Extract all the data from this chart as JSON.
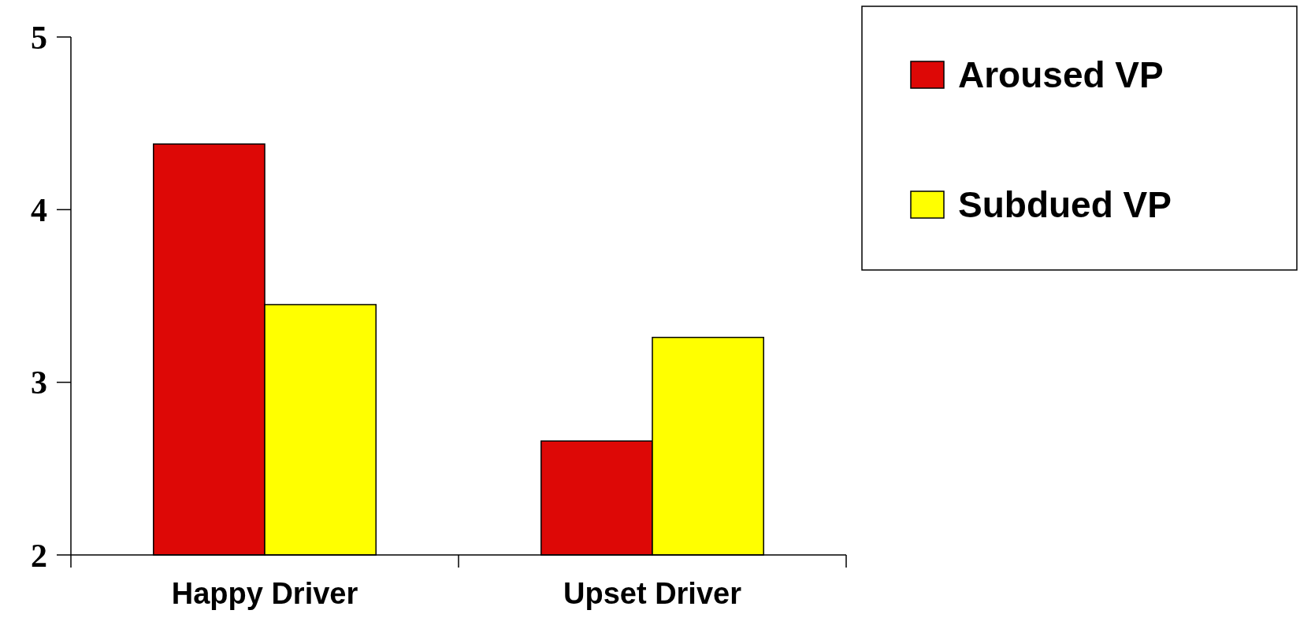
{
  "chart_data": {
    "type": "bar",
    "categories": [
      "Happy Driver",
      "Upset Driver"
    ],
    "series": [
      {
        "name": "Aroused VP",
        "color": "#dd0806",
        "values": [
          4.38,
          2.66
        ]
      },
      {
        "name": "Subdued VP",
        "color": "#ffff00",
        "values": [
          3.45,
          3.26
        ]
      }
    ],
    "ylim": [
      2,
      5
    ],
    "yticks": [
      2,
      3,
      4,
      5
    ],
    "grid": false,
    "legend": "top right"
  }
}
